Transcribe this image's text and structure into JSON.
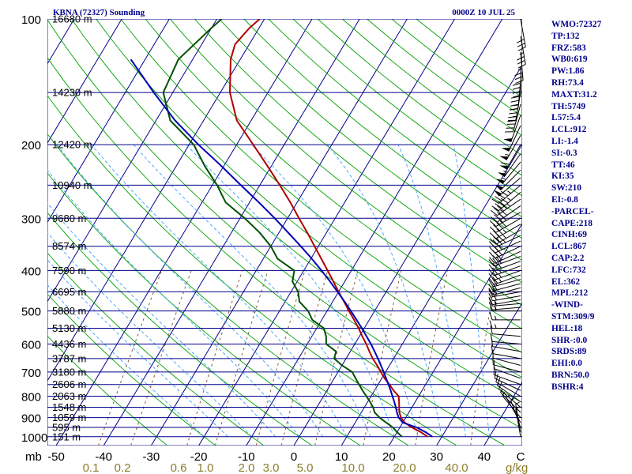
{
  "header": {
    "station": "KBNA (72327) Sounding",
    "time": "0000Z 10 JUL 25"
  },
  "chart_data": {
    "type": "skew-t",
    "x_axis_label": "mb",
    "mixing_ratio_unit": "g/kg",
    "pressure_ticks": [
      100,
      200,
      300,
      400,
      500,
      600,
      700,
      800,
      900,
      1000
    ],
    "temperature_ticks": [
      -50,
      -40,
      -30,
      -20,
      -10,
      0,
      10,
      20,
      30,
      40
    ],
    "mixing_ratio_ticks": [
      "0.1",
      "0.2",
      "0.6",
      "1.0",
      "2.0",
      "3.0",
      "5.0",
      "10.0",
      "20.0",
      "40.0"
    ],
    "height_labels": [
      {
        "p": 100,
        "text": "16680 m"
      },
      {
        "p": 150,
        "text": "14230 m"
      },
      {
        "p": 200,
        "text": "12420 m"
      },
      {
        "p": 250,
        "text": "10940 m"
      },
      {
        "p": 300,
        "text": "9680 m"
      },
      {
        "p": 350,
        "text": "8574 m"
      },
      {
        "p": 400,
        "text": "7590 m"
      },
      {
        "p": 450,
        "text": "6695 m"
      },
      {
        "p": 500,
        "text": "5880 m"
      },
      {
        "p": 550,
        "text": "5130 m"
      },
      {
        "p": 600,
        "text": "4436 m"
      },
      {
        "p": 650,
        "text": "3787 m"
      },
      {
        "p": 700,
        "text": "3180 m"
      },
      {
        "p": 750,
        "text": "2606 m"
      },
      {
        "p": 800,
        "text": "2063 m"
      },
      {
        "p": 850,
        "text": "1548 m"
      },
      {
        "p": 900,
        "text": "1059 m"
      },
      {
        "p": 950,
        "text": "595 m"
      },
      {
        "p": 1000,
        "text": "151 m"
      }
    ],
    "series": [
      {
        "color": "#b00000",
        "values": [
          [
            1000,
            27
          ],
          [
            975,
            25
          ],
          [
            950,
            22.5
          ],
          [
            925,
            20.4
          ],
          [
            900,
            19
          ],
          [
            875,
            18
          ],
          [
            850,
            17.3
          ],
          [
            825,
            16.6
          ],
          [
            800,
            15.8
          ],
          [
            775,
            14
          ],
          [
            750,
            12.4
          ],
          [
            725,
            10.6
          ],
          [
            700,
            9
          ],
          [
            675,
            7.4
          ],
          [
            650,
            5.6
          ],
          [
            625,
            4
          ],
          [
            600,
            2.4
          ],
          [
            575,
            0.6
          ],
          [
            550,
            -1.2
          ],
          [
            525,
            -3.2
          ],
          [
            500,
            -5.4
          ],
          [
            475,
            -7.6
          ],
          [
            450,
            -10
          ],
          [
            425,
            -12.4
          ],
          [
            400,
            -15
          ],
          [
            375,
            -17.8
          ],
          [
            350,
            -20.8
          ],
          [
            325,
            -24
          ],
          [
            300,
            -27.6
          ],
          [
            275,
            -31.4
          ],
          [
            250,
            -35.8
          ],
          [
            225,
            -40.8
          ],
          [
            200,
            -46.5
          ],
          [
            175,
            -53
          ],
          [
            150,
            -58
          ],
          [
            125,
            -62
          ],
          [
            115,
            -63
          ],
          [
            105,
            -62
          ],
          [
            100,
            -61
          ]
        ]
      },
      {
        "color": "#005000",
        "values": [
          [
            1000,
            21.6
          ],
          [
            975,
            20
          ],
          [
            950,
            18.5
          ],
          [
            925,
            16.5
          ],
          [
            900,
            14.5
          ],
          [
            875,
            12.8
          ],
          [
            850,
            11.8
          ],
          [
            825,
            10.5
          ],
          [
            800,
            9
          ],
          [
            775,
            7.5
          ],
          [
            750,
            6
          ],
          [
            725,
            4.5
          ],
          [
            700,
            3
          ],
          [
            675,
            0
          ],
          [
            650,
            -2.5
          ],
          [
            625,
            -3
          ],
          [
            600,
            -6
          ],
          [
            575,
            -7
          ],
          [
            550,
            -8.5
          ],
          [
            525,
            -12
          ],
          [
            500,
            -14
          ],
          [
            475,
            -17
          ],
          [
            450,
            -18.5
          ],
          [
            425,
            -21
          ],
          [
            400,
            -22
          ],
          [
            375,
            -27
          ],
          [
            350,
            -30
          ],
          [
            325,
            -34
          ],
          [
            300,
            -39
          ],
          [
            275,
            -45
          ],
          [
            250,
            -49
          ],
          [
            225,
            -54
          ],
          [
            200,
            -59
          ],
          [
            175,
            -67
          ],
          [
            150,
            -72
          ],
          [
            125,
            -73
          ],
          [
            105,
            -70
          ],
          [
            100,
            -69
          ]
        ]
      },
      {
        "color": "#0000b4",
        "values": [
          [
            1000,
            28
          ],
          [
            975,
            26
          ],
          [
            950,
            23.5
          ],
          [
            925,
            20
          ],
          [
            900,
            18.5
          ],
          [
            875,
            17.5
          ],
          [
            850,
            16.6
          ],
          [
            825,
            15.6
          ],
          [
            800,
            14.5
          ],
          [
            775,
            13.4
          ],
          [
            750,
            12.2
          ],
          [
            725,
            10.9
          ],
          [
            700,
            9.6
          ],
          [
            675,
            8.2
          ],
          [
            650,
            6.7
          ],
          [
            625,
            5.1
          ],
          [
            600,
            3.4
          ],
          [
            575,
            1.5
          ],
          [
            550,
            -0.5
          ],
          [
            525,
            -2.7
          ],
          [
            500,
            -5
          ],
          [
            475,
            -7.5
          ],
          [
            450,
            -10.2
          ],
          [
            425,
            -13.1
          ],
          [
            400,
            -16.3
          ],
          [
            375,
            -19.8
          ],
          [
            350,
            -23.7
          ],
          [
            325,
            -28
          ],
          [
            300,
            -32.7
          ],
          [
            275,
            -38
          ],
          [
            250,
            -44
          ],
          [
            225,
            -50.5
          ],
          [
            200,
            -58
          ],
          [
            175,
            -66
          ],
          [
            150,
            -74
          ],
          [
            125,
            -83
          ]
        ]
      }
    ]
  },
  "indices": [
    "WMO:72327",
    "TP:132",
    "FRZ:583",
    "WB0:619",
    "PW:1.86",
    "RH:73.4",
    "MAXT:31.2",
    "TH:5749",
    "L57:5.4",
    "LCL:912",
    "LI:-1.4",
    "SI:-0.3",
    "TT:46",
    "KI:35",
    "SW:210",
    "EI:-0.8",
    "-PARCEL-",
    "CAPE:218",
    "CINH:69",
    "LCL:867",
    "CAP:2.2",
    "LFC:732",
    "EL:362",
    "MPL:212",
    "-WIND-",
    "STM:309/9",
    "HEL:18",
    "SHR-:0.0",
    "SRDS:89",
    "EHI:0.0",
    "BRN:50.0",
    "BSHR:4"
  ],
  "colors": {
    "isobar": "#00008b",
    "isotherm": "#00008b",
    "dry_adiabat": "#00a000",
    "moist_adiabat": "#4aa8ff",
    "mixing_ratio": "#806040",
    "wind": "#000000"
  },
  "wind_barbs": {
    "pressures": [
      100,
      110,
      120,
      130,
      140,
      150,
      160,
      170,
      180,
      190,
      200,
      210,
      220,
      230,
      240,
      250,
      260,
      270,
      280,
      290,
      300,
      310,
      320,
      330,
      340,
      350,
      360,
      370,
      380,
      390,
      400,
      410,
      420,
      430,
      440,
      450,
      460,
      470,
      480,
      490,
      500,
      525,
      550,
      575,
      600,
      625,
      650,
      675,
      700,
      725,
      750,
      775,
      800,
      825,
      850,
      875,
      900,
      925,
      950,
      975,
      1000
    ],
    "directions_deg": [
      170,
      170,
      175,
      180,
      185,
      190,
      195,
      200,
      205,
      210,
      210,
      215,
      220,
      225,
      230,
      230,
      230,
      235,
      235,
      240,
      240,
      240,
      240,
      245,
      245,
      245,
      245,
      250,
      250,
      250,
      250,
      250,
      255,
      255,
      255,
      260,
      260,
      260,
      265,
      265,
      270,
      270,
      270,
      275,
      275,
      280,
      280,
      285,
      285,
      290,
      290,
      295,
      300,
      305,
      310,
      315,
      320,
      330,
      340,
      350,
      350
    ],
    "speeds_kt": [
      30,
      35,
      35,
      40,
      40,
      45,
      45,
      50,
      50,
      55,
      60,
      55,
      55,
      50,
      50,
      45,
      45,
      45,
      40,
      40,
      40,
      35,
      35,
      35,
      30,
      30,
      30,
      30,
      25,
      25,
      25,
      25,
      20,
      20,
      20,
      20,
      20,
      15,
      15,
      15,
      15,
      15,
      15,
      10,
      10,
      10,
      10,
      10,
      10,
      10,
      10,
      10,
      10,
      10,
      10,
      5,
      5,
      5,
      5,
      5,
      5
    ]
  }
}
